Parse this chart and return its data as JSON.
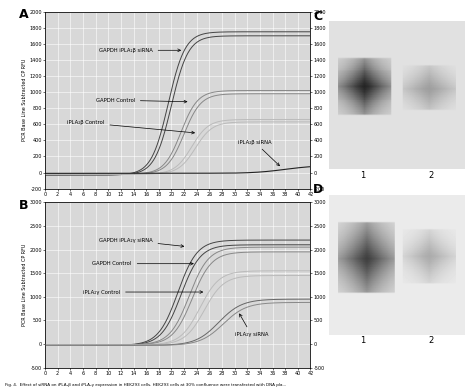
{
  "panel_A": {
    "label": "A",
    "ylabel": "PCR Base Line Subtracted CP RFU",
    "ylim": [
      -200,
      2000
    ],
    "yticks": [
      -200,
      0,
      200,
      400,
      600,
      800,
      1000,
      1200,
      1400,
      1600,
      1800,
      2000
    ],
    "xlim": [
      0,
      42
    ],
    "xticks": [
      0,
      2,
      4,
      6,
      8,
      10,
      12,
      14,
      16,
      18,
      20,
      22,
      24,
      26,
      28,
      30,
      32,
      34,
      36,
      38,
      40,
      42
    ]
  },
  "panel_B": {
    "label": "B",
    "ylabel": "PCR Base Line Subtracted CP RFU",
    "ylim": [
      -500,
      3000
    ],
    "yticks": [
      -500,
      0,
      500,
      1000,
      1500,
      2000,
      2500,
      3000
    ],
    "xlim": [
      0,
      42
    ],
    "xticks": [
      0,
      2,
      4,
      6,
      8,
      10,
      12,
      14,
      16,
      18,
      20,
      22,
      24,
      26,
      28,
      30,
      32,
      34,
      36,
      38,
      40,
      42
    ]
  },
  "panel_C": {
    "label": "C",
    "lane_labels": [
      "1",
      "2"
    ]
  },
  "panel_D": {
    "label": "D",
    "lane_labels": [
      "1",
      "2"
    ]
  },
  "bg_color": "#d8d8d8",
  "grid_color": "#ffffff",
  "colors": {
    "dark": "#444444",
    "medium": "#888888",
    "light": "#bbbbbb",
    "flat": "#222222",
    "sirna_b": "#999999",
    "sirna_g1": "#666666",
    "sirna_g2": "#888888"
  },
  "caption": "Fig. 4.  Effect of siRNA on iPLA₂β and iPLA₂γ expression in HEK293 cells. HEK293 cells at 30% confluence were transfected with DNA pla..."
}
